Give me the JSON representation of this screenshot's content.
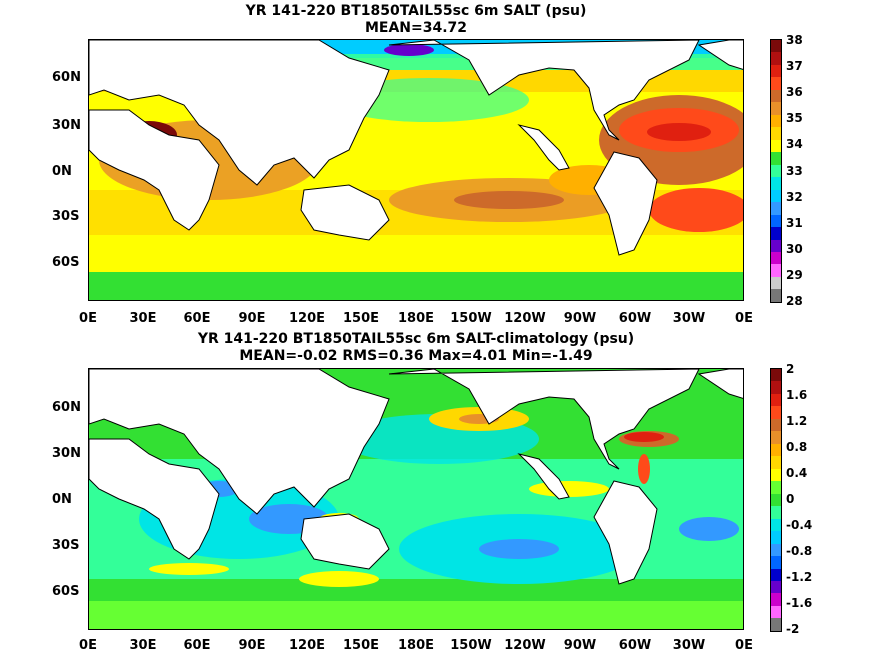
{
  "panels": [
    {
      "title_line1": "YR 141-220 BT1850TAIL55sc 6m SALT (psu)",
      "title_line2": "MEAN=34.72",
      "lat_labels": [
        "60N",
        "30N",
        "0N",
        "30S",
        "60S"
      ],
      "lon_labels": [
        "0E",
        "30E",
        "60E",
        "90E",
        "120E",
        "150E",
        "180E",
        "150W",
        "120W",
        "90W",
        "60W",
        "30W",
        "0E"
      ],
      "colorbar": {
        "labels": [
          "38",
          "37",
          "36",
          "35",
          "34",
          "33",
          "32",
          "31",
          "30",
          "29",
          "28"
        ],
        "colors": [
          "#7a0a0a",
          "#b01010",
          "#e02010",
          "#ff4a1a",
          "#cd6a2a",
          "#e8902a",
          "#ffb000",
          "#ffd800",
          "#ffff00",
          "#33e033",
          "#33ff99",
          "#00e5e5",
          "#00ccff",
          "#3399ff",
          "#0066ff",
          "#0000cc",
          "#6600cc",
          "#cc00cc",
          "#ff66ff",
          "#cccccc",
          "#777777"
        ]
      }
    },
    {
      "title_line1": "YR 141-220 BT1850TAIL55sc 6m SALT-climatology (psu)",
      "title_line2": "MEAN=-0.02   RMS=0.36   Max=4.01   Min=-1.49",
      "lat_labels": [
        "60N",
        "30N",
        "0N",
        "30S",
        "60S"
      ],
      "lon_labels": [
        "0E",
        "30E",
        "60E",
        "90E",
        "120E",
        "150E",
        "180E",
        "150W",
        "120W",
        "90W",
        "60W",
        "30W",
        "0E"
      ],
      "colorbar": {
        "labels": [
          "2",
          "1.6",
          "1.2",
          "0.8",
          "0.4",
          "0",
          "-0.4",
          "-0.8",
          "-1.2",
          "-1.6",
          "-2"
        ],
        "colors": [
          "#7a0a0a",
          "#b01010",
          "#e02010",
          "#ff4a1a",
          "#cd6a2a",
          "#e8902a",
          "#ffb000",
          "#ffd800",
          "#ffff00",
          "#66ff33",
          "#33e033",
          "#33ff99",
          "#00e5e5",
          "#00ccff",
          "#3399ff",
          "#0066ff",
          "#0000cc",
          "#6600cc",
          "#cc00cc",
          "#ff66ff",
          "#777777"
        ]
      }
    }
  ]
}
